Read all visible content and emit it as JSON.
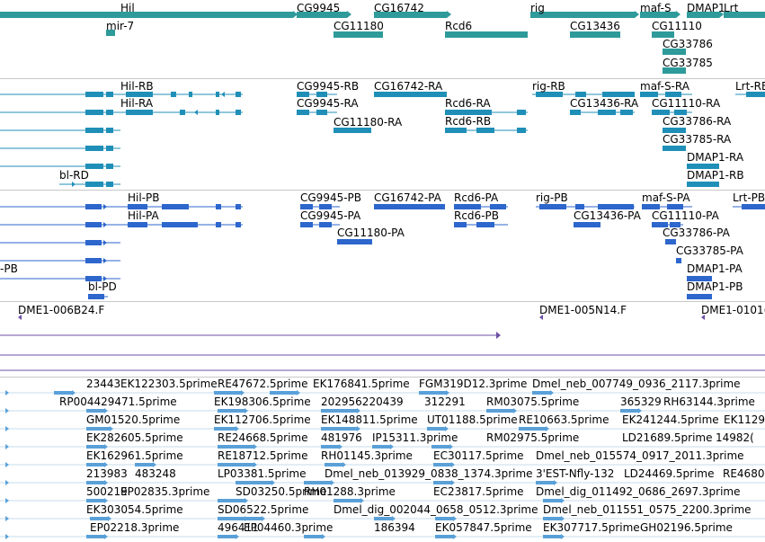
{
  "colors": {
    "gene": "#2e9a9a",
    "transcript": "#1f8fb8",
    "cds": "#2d66cc",
    "clone": "#6c4fa5",
    "est": "#5aa0d8"
  },
  "tracks": {
    "genes": {
      "labels": [
        "Hil",
        "mir-7",
        "CG9945",
        "CG11180",
        "CG16742",
        "Rcd6",
        "rig",
        "CG13436",
        "maf-S",
        "CG11110",
        "DMAP1",
        "Lrt",
        "CG33786",
        "CG33785"
      ]
    },
    "transcripts": {
      "labels": [
        "Hil-RB",
        "Hil-RA",
        "CG9945-RB",
        "CG9945-RA",
        "CG11180-RA",
        "CG16742-RA",
        "Rcd6-RA",
        "Rcd6-RB",
        "rig-RB",
        "CG13436-RA",
        "maf-S-RA",
        "CG11110-RA",
        "CG33786-RA",
        "CG33785-RA",
        "DMAP1-RA",
        "DMAP1-RB",
        "Lrt-RB",
        "bl-RD"
      ]
    },
    "proteins": {
      "labels": [
        "Hil-PB",
        "Hil-PA",
        "CG9945-PB",
        "CG9945-PA",
        "CG11180-PA",
        "CG16742-PA",
        "Rcd6-PA",
        "Rcd6-PB",
        "rig-PB",
        "CG13436-PA",
        "maf-S-PA",
        "CG11110-PA",
        "CG33786-PA",
        "CG33785-PA",
        "DMAP1-PA",
        "DMAP1-PB",
        "Lrt-PB",
        "-PB",
        "bl-PD"
      ]
    },
    "clones": {
      "labels": [
        "DME1-006B24.F",
        "DME1-005N14.F",
        "DME1-0101("
      ]
    },
    "ests": {
      "labels": [
        "23443",
        "EK122303.5prime",
        "RE47672.5prime",
        "EK176841.5prime",
        "FGM319D12.3prime",
        "Dmel_neb_007749_0936_2117.3prime",
        "RP004429471.5prime",
        "EK198306.5prime",
        "202956220439",
        "312291",
        "RM03075.5prime",
        "365329",
        "RH63144.3prime",
        "GM01520.5prime",
        "EK112706.5prime",
        "EK148811.5prime",
        "UT01188.5prime",
        "RE10663.5prime",
        "EK241244.5prime",
        "EK1129",
        "EK282605.5prime",
        "RE24668.5prime",
        "481976",
        "IP15311.3prime",
        "RM02975.5prime",
        "LD21689.5prime",
        "14982(",
        "EK162961.5prime",
        "RE18712.5prime",
        "RH01145.3prime",
        "EC30117.5prime",
        "Dmel_neb_015574_0917_2011.3prime",
        "213983",
        "483248",
        "LP03381.5prime",
        "Dmel_neb_013929_0838_1374.3prime",
        "3'EST-Nfly-132",
        "LD24469.5prime",
        "RE4680",
        "500219",
        "EP02835.3prime",
        "SD03250.5prime",
        "RH01288.3prime",
        "EC23817.5prime",
        "Dmel_dig_011492_0686_2697.3prime",
        "EK303054.5prime",
        "SD06522.5prime",
        "Dmel_dig_002044_0658_0512.3prime",
        "Dmel_neb_011551_0575_2200.3prime",
        "EP02218.3prime",
        "496411",
        "EP04460.3prime",
        "186394",
        "EK057847.5prime",
        "EK307717.5prime",
        "GH02196.5prime"
      ]
    }
  }
}
